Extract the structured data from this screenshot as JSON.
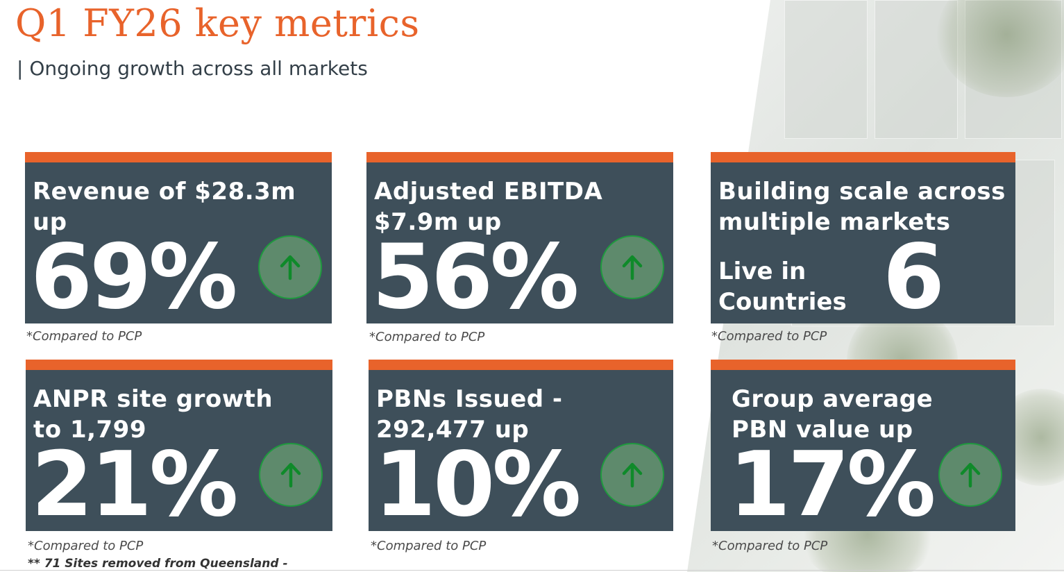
{
  "header": {
    "title": "Q1 FY26 key metrics",
    "subtitle": "| Ongoing growth across all markets"
  },
  "cards": [
    {
      "head_line1": "Revenue of $28.3m",
      "head_line2": "up",
      "value": "69%",
      "note": "*Compared to PCP"
    },
    {
      "head_line1": "Adjusted EBITDA",
      "head_line2": "$7.9m up",
      "value": "56%",
      "note": "*Compared to PCP"
    },
    {
      "head_line1": "Building scale across",
      "head_line2": "multiple markets",
      "label_line1": "Live in",
      "label_line2": "Countries",
      "value": "6",
      "note": "*Compared to PCP"
    },
    {
      "head_line1": "ANPR site growth",
      "head_line2": "to 1,799",
      "value": "21%",
      "note": "*Compared to PCP",
      "footnote": "** 71 Sites removed from Queensland -"
    },
    {
      "head_line1": "PBNs Issued -",
      "head_line2": "292,477 up",
      "value": "10%",
      "note": "*Compared to PCP"
    },
    {
      "head_line1": "Group average",
      "head_line2": "PBN value up",
      "value": "17%",
      "note": "*Compared to PCP"
    }
  ],
  "colors": {
    "accent": "#e8632b",
    "card_bg": "#3e4f5a",
    "arrow_fill": "#5e8a6c",
    "arrow_stroke": "#1f9a3e",
    "arrow_glyph": "#0f8a2a"
  },
  "icons": {
    "trend": "arrow-up-icon"
  }
}
